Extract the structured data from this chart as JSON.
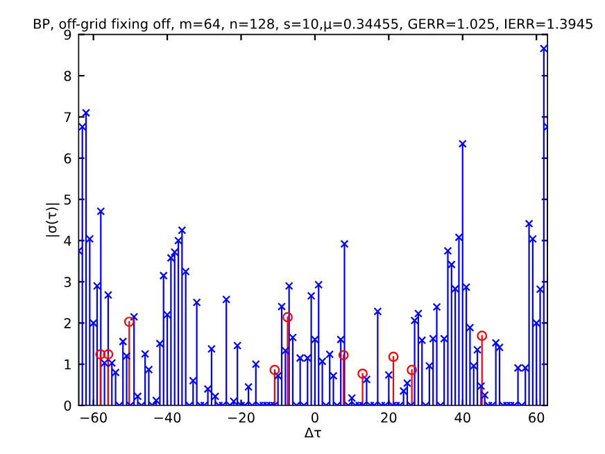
{
  "chart_data": {
    "type": "lollipop",
    "title": "BP, off-grid fixing off, m=64, n=128, s=10,μ=0.34455, GERR=1.025, IERR=1.3945",
    "xlabel": "Δτ",
    "ylabel": "|σ(τ)|",
    "xlim": [
      -64,
      63
    ],
    "xticks": [
      -60,
      -40,
      -20,
      0,
      20,
      40,
      60
    ],
    "ylim": [
      0,
      9
    ],
    "yticks": [
      0,
      1,
      2,
      3,
      4,
      5,
      6,
      7,
      8,
      9
    ],
    "grid": false,
    "legend": false,
    "series": [
      {
        "color": "#0000ff",
        "marker": "cross",
        "x": [
          -64,
          -63,
          -62,
          -61,
          -60,
          -59,
          -58,
          -57,
          -56,
          -55,
          -54,
          -53,
          -52,
          -51,
          -50,
          -49,
          -48,
          -47,
          -46,
          -45,
          -44,
          -43,
          -42,
          -41,
          -40,
          -39,
          -38,
          -37,
          -36,
          -35,
          -34,
          -33,
          -32,
          -31,
          -30,
          -29,
          -28,
          -27,
          -26,
          -25,
          -24,
          -23,
          -22,
          -21,
          -20,
          -19,
          -18,
          -17,
          -16,
          -15,
          -14,
          -13,
          -12,
          -11,
          -10,
          -9,
          -8,
          -7,
          -6,
          -5,
          -4,
          -3,
          -2,
          -1,
          0,
          1,
          2,
          3,
          4,
          5,
          6,
          7,
          8,
          9,
          10,
          11,
          12,
          13,
          14,
          15,
          16,
          17,
          18,
          19,
          20,
          21,
          22,
          23,
          24,
          25,
          26,
          27,
          28,
          29,
          30,
          31,
          32,
          33,
          34,
          35,
          36,
          37,
          38,
          39,
          40,
          41,
          42,
          43,
          44,
          45,
          46,
          47,
          48,
          49,
          50,
          51,
          52,
          53,
          54,
          55,
          56,
          57,
          58,
          59,
          60,
          61,
          62,
          63
        ],
        "values": [
          3.75,
          6.76,
          7.1,
          4.04,
          2.0,
          2.9,
          4.71,
          1.03,
          2.68,
          1.03,
          0.8,
          0,
          1.55,
          1.2,
          0,
          2.15,
          0.22,
          0,
          1.25,
          0.87,
          0,
          0.12,
          1.5,
          3.15,
          2.2,
          3.58,
          3.72,
          4.0,
          4.25,
          3.25,
          0,
          0.6,
          2.5,
          0,
          0,
          0.4,
          1.37,
          0.22,
          0,
          0,
          2.57,
          0,
          0.1,
          1.45,
          0,
          0,
          0.45,
          0,
          1.0,
          0,
          0,
          0,
          0,
          0,
          0.72,
          2.4,
          1.33,
          2.9,
          1.65,
          0,
          1.15,
          0,
          1.15,
          2.66,
          1.6,
          2.93,
          1.07,
          0,
          1.24,
          0.72,
          0,
          1.6,
          3.92,
          0,
          0.18,
          0,
          0,
          0,
          0.63,
          0,
          0,
          2.28,
          0,
          0,
          0.74,
          0,
          0,
          0,
          0.35,
          0.54,
          0,
          2.06,
          2.23,
          1.58,
          0,
          0.96,
          1.62,
          2.39,
          0,
          1.62,
          3.75,
          3.42,
          2.83,
          4.08,
          6.35,
          2.87,
          1.89,
          0.96,
          1.35,
          0.47,
          0.25,
          0,
          0,
          1.52,
          1.41,
          0,
          0,
          0,
          0,
          0.91,
          0,
          0.91,
          4.41,
          4.04,
          2.0,
          2.82,
          8.66,
          6.76
        ]
      },
      {
        "color": "#ff0000",
        "marker": "circle",
        "x": [
          -58.1,
          -56,
          -50.3,
          -10.9,
          -7.4,
          7.75,
          12.9,
          21.25,
          26.25,
          45.25
        ],
        "values": [
          1.24,
          1.24,
          2.03,
          0.86,
          2.14,
          1.22,
          0.77,
          1.18,
          0.86,
          1.69
        ]
      }
    ]
  }
}
